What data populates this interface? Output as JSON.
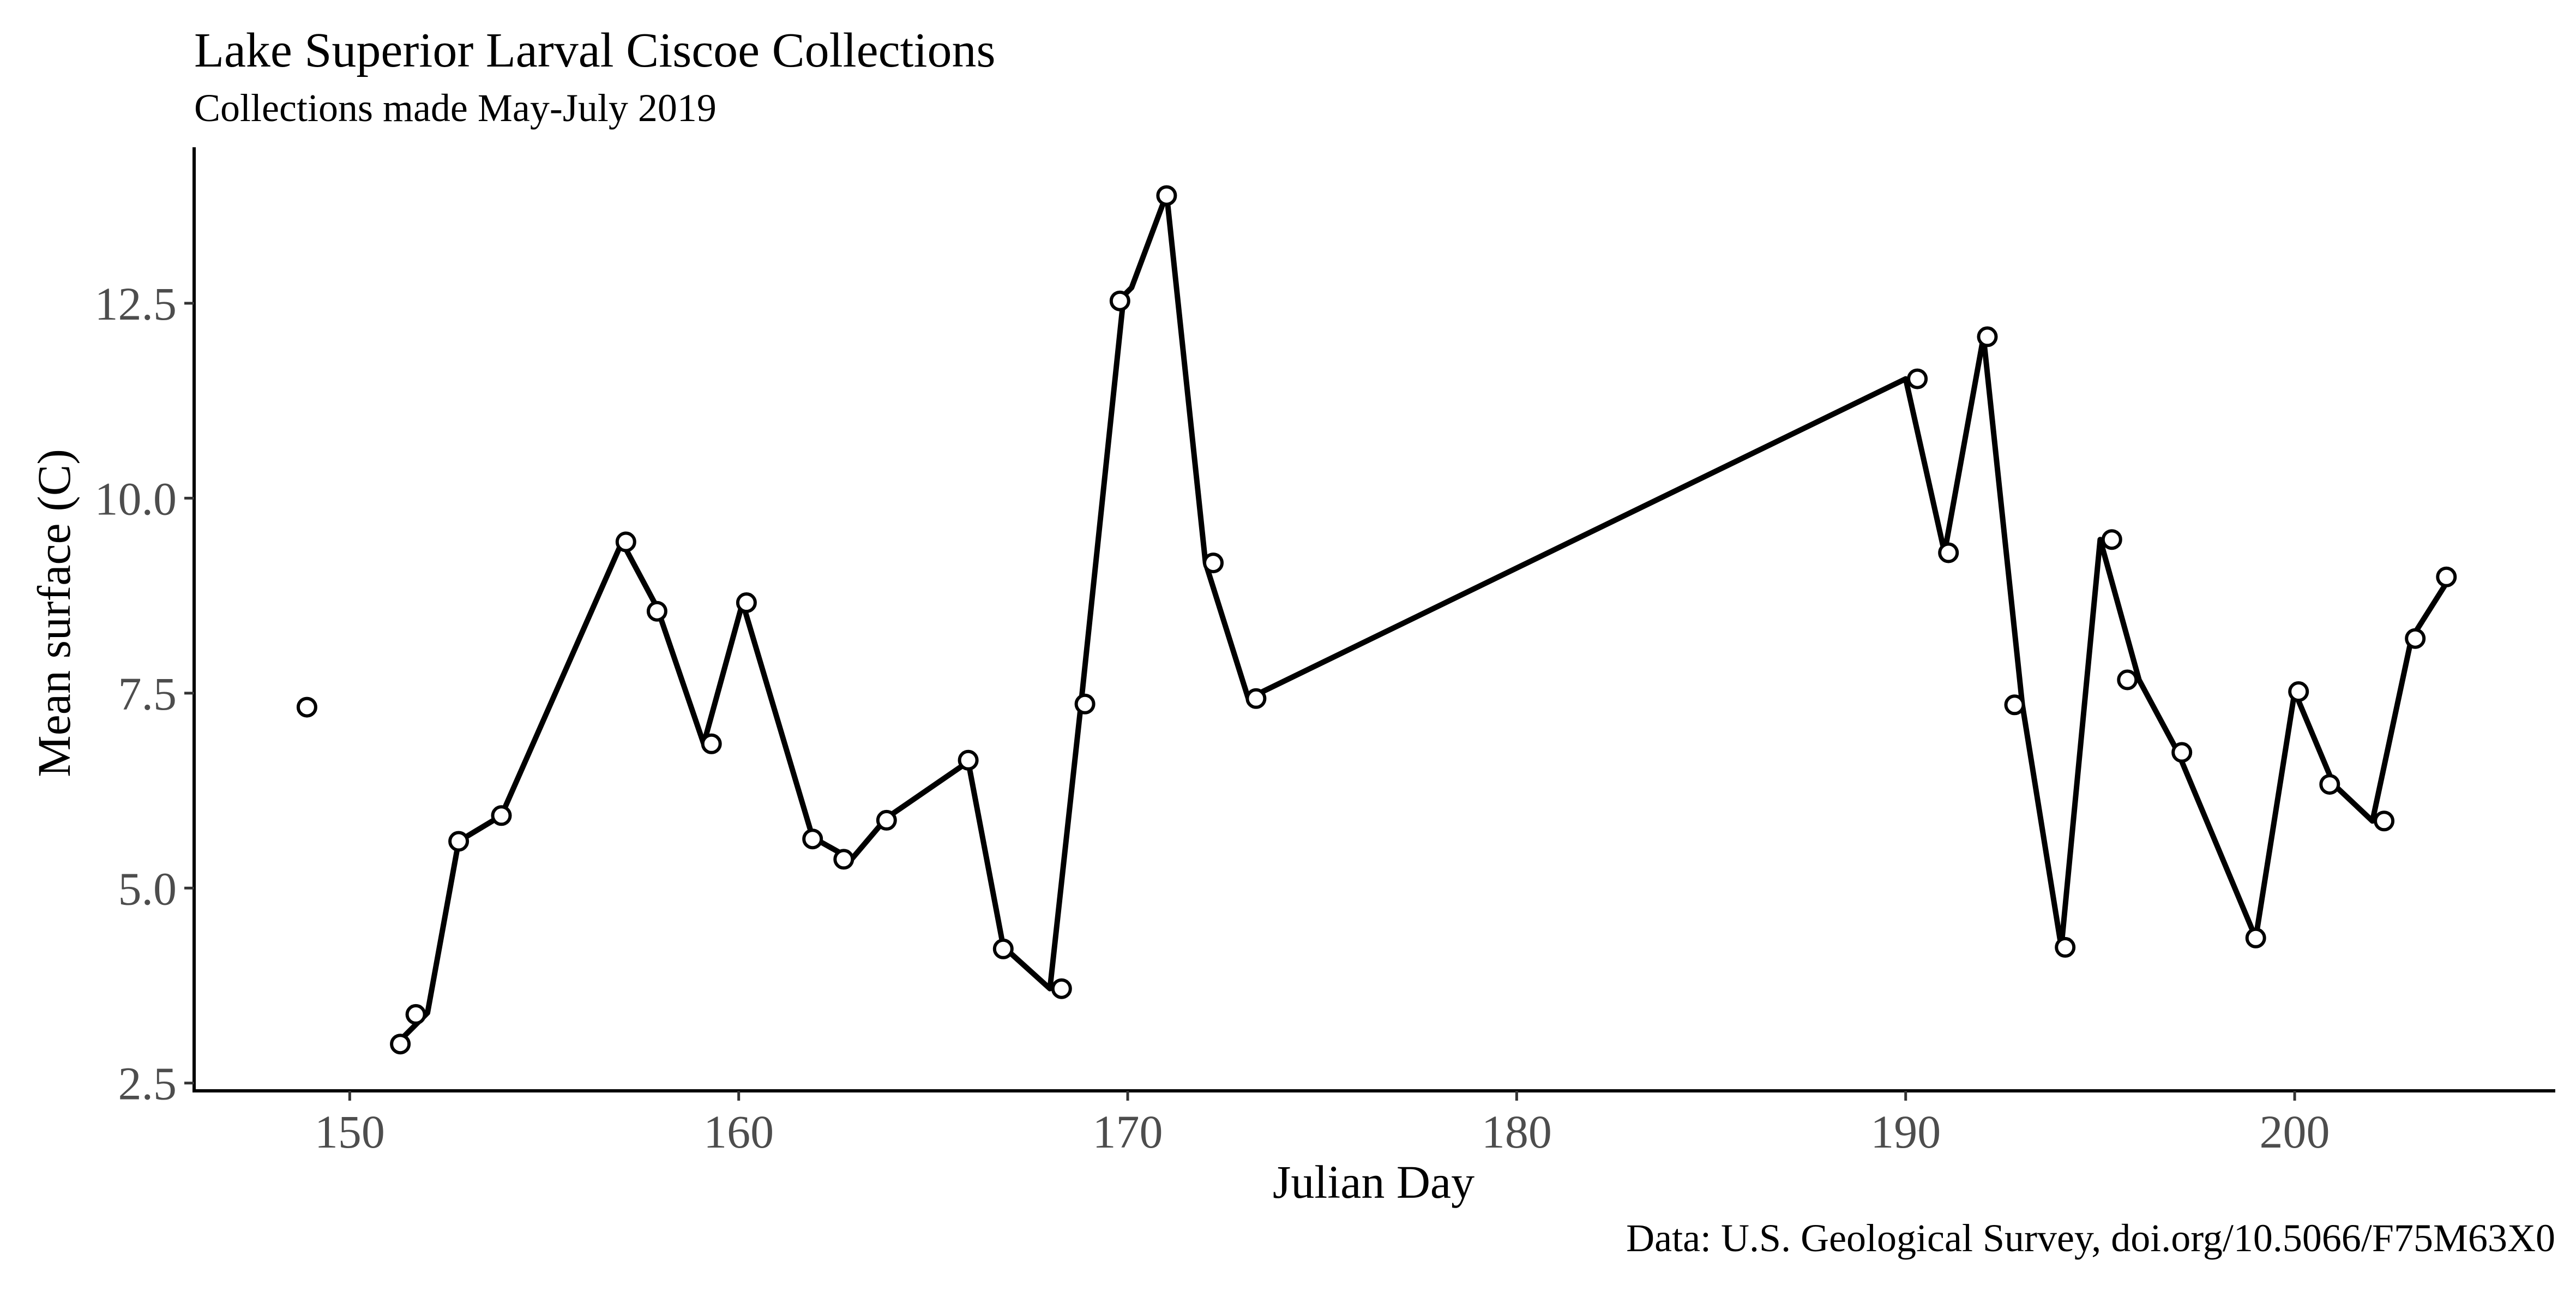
{
  "chart_data": {
    "type": "line",
    "title": "Lake Superior Larval Ciscoe Collections",
    "subtitle": "Collections made May-July 2019",
    "xlabel": "Julian Day",
    "ylabel": "Mean surface (C)",
    "caption": "Data: U.S. Geological Survey, doi.org/10.5066/F75M63X0",
    "xlim": [
      146,
      206.7
    ],
    "ylim": [
      2.4,
      14.5
    ],
    "x_ticks": [
      150,
      160,
      170,
      180,
      190,
      200
    ],
    "x_tick_labels": [
      "150",
      "160",
      "170",
      "180",
      "190",
      "200"
    ],
    "y_ticks": [
      2.5,
      5.0,
      7.5,
      10.0,
      12.5
    ],
    "y_tick_labels": [
      "2.5",
      "5.0",
      "7.5",
      "10.0",
      "12.5"
    ],
    "grid": false,
    "points": [
      {
        "x": 148.9,
        "y": 7.32
      },
      {
        "x": 151.3,
        "y": 3.0
      },
      {
        "x": 151.7,
        "y": 3.38
      },
      {
        "x": 152.8,
        "y": 5.6
      },
      {
        "x": 153.9,
        "y": 5.93
      },
      {
        "x": 157.1,
        "y": 9.44
      },
      {
        "x": 157.9,
        "y": 8.55
      },
      {
        "x": 159.3,
        "y": 6.85
      },
      {
        "x": 160.2,
        "y": 8.66
      },
      {
        "x": 161.9,
        "y": 5.63
      },
      {
        "x": 162.7,
        "y": 5.37
      },
      {
        "x": 163.8,
        "y": 5.87
      },
      {
        "x": 165.9,
        "y": 6.64
      },
      {
        "x": 166.8,
        "y": 4.22
      },
      {
        "x": 168.3,
        "y": 3.71
      },
      {
        "x": 168.9,
        "y": 7.36
      },
      {
        "x": 169.8,
        "y": 12.53
      },
      {
        "x": 171.0,
        "y": 13.88
      },
      {
        "x": 172.2,
        "y": 9.17
      },
      {
        "x": 173.3,
        "y": 7.43
      },
      {
        "x": 190.3,
        "y": 11.53
      },
      {
        "x": 191.1,
        "y": 9.3
      },
      {
        "x": 192.1,
        "y": 12.07
      },
      {
        "x": 192.8,
        "y": 7.35
      },
      {
        "x": 194.1,
        "y": 4.24
      },
      {
        "x": 195.3,
        "y": 9.47
      },
      {
        "x": 195.7,
        "y": 7.67
      },
      {
        "x": 197.1,
        "y": 6.74
      },
      {
        "x": 199.0,
        "y": 4.36
      },
      {
        "x": 200.1,
        "y": 7.52
      },
      {
        "x": 200.9,
        "y": 6.33
      },
      {
        "x": 202.3,
        "y": 5.86
      },
      {
        "x": 203.1,
        "y": 8.2
      },
      {
        "x": 203.9,
        "y": 8.99
      }
    ],
    "line": [
      {
        "x": 151.2,
        "y": 3.0
      },
      {
        "x": 152.0,
        "y": 3.4
      },
      {
        "x": 152.8,
        "y": 5.6
      },
      {
        "x": 153.9,
        "y": 5.93
      },
      {
        "x": 157.0,
        "y": 9.44
      },
      {
        "x": 157.9,
        "y": 8.6
      },
      {
        "x": 159.1,
        "y": 6.85
      },
      {
        "x": 160.1,
        "y": 8.66
      },
      {
        "x": 161.9,
        "y": 5.65
      },
      {
        "x": 162.9,
        "y": 5.37
      },
      {
        "x": 163.8,
        "y": 5.9
      },
      {
        "x": 165.9,
        "y": 6.62
      },
      {
        "x": 166.8,
        "y": 4.25
      },
      {
        "x": 168.0,
        "y": 3.71
      },
      {
        "x": 168.8,
        "y": 7.36
      },
      {
        "x": 169.9,
        "y": 12.6
      },
      {
        "x": 170.1,
        "y": 12.7
      },
      {
        "x": 171.0,
        "y": 13.9
      },
      {
        "x": 172.0,
        "y": 9.17
      },
      {
        "x": 173.1,
        "y": 7.43
      },
      {
        "x": 190.0,
        "y": 11.53
      },
      {
        "x": 191.0,
        "y": 9.3
      },
      {
        "x": 192.0,
        "y": 12.07
      },
      {
        "x": 193.0,
        "y": 7.35
      },
      {
        "x": 194.0,
        "y": 4.24
      },
      {
        "x": 195.0,
        "y": 9.47
      },
      {
        "x": 196.0,
        "y": 7.67
      },
      {
        "x": 197.0,
        "y": 6.74
      },
      {
        "x": 199.0,
        "y": 4.36
      },
      {
        "x": 200.0,
        "y": 7.52
      },
      {
        "x": 201.0,
        "y": 6.33
      },
      {
        "x": 202.0,
        "y": 5.86
      },
      {
        "x": 203.0,
        "y": 8.2
      },
      {
        "x": 204.0,
        "y": 8.99
      }
    ],
    "colors": {
      "line": "#000000",
      "marker_stroke": "#000000",
      "marker_fill": "#ffffff",
      "tick_label": "#4d4d4d"
    }
  }
}
